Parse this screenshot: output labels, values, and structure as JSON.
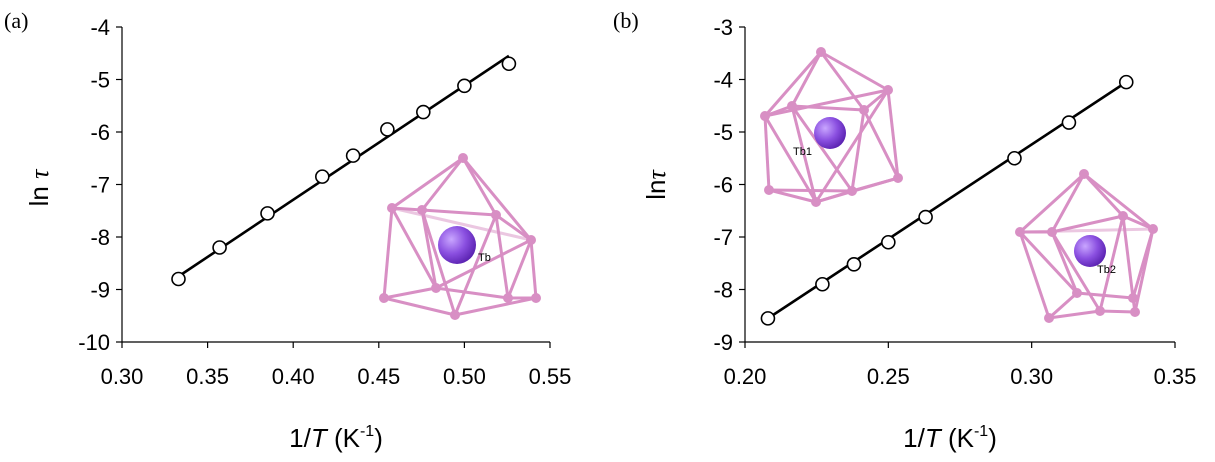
{
  "chart_data": [
    {
      "type": "scatter",
      "panel_label": "(a)",
      "xlabel_prefix": "1/",
      "xlabel_var": "T",
      "xlabel_unit": " (K",
      "xlabel_exp": "-1",
      "xlabel_close": ")",
      "ylabel_prefix": "ln ",
      "ylabel_var": "τ",
      "xlim": [
        0.3,
        0.55
      ],
      "ylim": [
        -10,
        -4
      ],
      "xticks": [
        "0.30",
        "0.35",
        "0.40",
        "0.45",
        "0.50",
        "0.55"
      ],
      "yticks": [
        "-4",
        "-5",
        "-6",
        "-7",
        "-8",
        "-9",
        "-10"
      ],
      "series": [
        {
          "x": [
            0.333,
            0.357,
            0.385,
            0.417,
            0.435,
            0.455,
            0.476,
            0.5,
            0.526
          ],
          "y": [
            -8.8,
            -8.2,
            -7.55,
            -6.85,
            -6.45,
            -5.95,
            -5.62,
            -5.12,
            -4.7
          ]
        }
      ],
      "fit": {
        "x": [
          0.333,
          0.526
        ],
        "y": [
          -8.75,
          -4.55
        ]
      },
      "inset_labels": [
        "Tb"
      ],
      "grid": false
    },
    {
      "type": "scatter",
      "panel_label": "(b)",
      "xlabel_prefix": "1/",
      "xlabel_var": "T",
      "xlabel_unit": " (K",
      "xlabel_exp": "-1",
      "xlabel_close": ")",
      "ylabel_prefix": "ln",
      "ylabel_var": "τ",
      "xlim": [
        0.2,
        0.35
      ],
      "ylim": [
        -9,
        -3
      ],
      "xticks": [
        "0.20",
        "0.25",
        "0.30",
        "0.35"
      ],
      "yticks": [
        "-3",
        "-4",
        "-5",
        "-6",
        "-7",
        "-8",
        "-9"
      ],
      "series": [
        {
          "x": [
            0.208,
            0.227,
            0.238,
            0.25,
            0.263,
            0.294,
            0.313,
            0.333
          ],
          "y": [
            -8.55,
            -7.9,
            -7.52,
            -7.1,
            -6.62,
            -5.5,
            -4.82,
            -4.05
          ]
        }
      ],
      "fit": {
        "x": [
          0.208,
          0.333
        ],
        "y": [
          -8.55,
          -4.05
        ]
      },
      "inset_labels": [
        "Tb1",
        "Tb2"
      ],
      "grid": false
    }
  ]
}
